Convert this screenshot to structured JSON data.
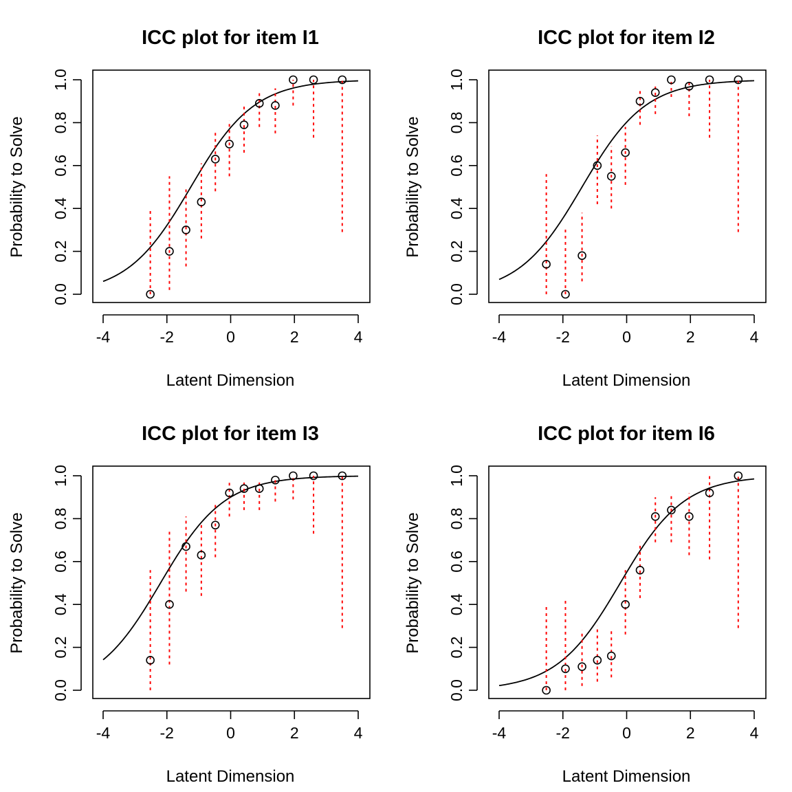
{
  "chart_data": [
    {
      "type": "scatter",
      "title": "ICC plot for item  I1",
      "xlabel": "Latent Dimension",
      "ylabel": "Probability to Solve",
      "xlim": [
        -4,
        4
      ],
      "ylim": [
        0,
        1
      ],
      "xticks": [
        -4,
        -2,
        0,
        2,
        4
      ],
      "yticks": [
        0.0,
        0.2,
        0.4,
        0.6,
        0.8,
        1.0
      ],
      "ytick_labels": [
        "0.0",
        "0.2",
        "0.4",
        "0.6",
        "0.8",
        "1.0"
      ],
      "curve": {
        "a": 1.0,
        "b": -1.25
      },
      "points": [
        {
          "x": -2.52,
          "y": 0.0,
          "lo": 0.0,
          "hi": 0.39
        },
        {
          "x": -1.92,
          "y": 0.2,
          "lo": 0.02,
          "hi": 0.55
        },
        {
          "x": -1.4,
          "y": 0.3,
          "lo": 0.13,
          "hi": 0.49
        },
        {
          "x": -0.92,
          "y": 0.43,
          "lo": 0.26,
          "hi": 0.61
        },
        {
          "x": -0.48,
          "y": 0.63,
          "lo": 0.48,
          "hi": 0.76
        },
        {
          "x": -0.04,
          "y": 0.7,
          "lo": 0.55,
          "hi": 0.81
        },
        {
          "x": 0.42,
          "y": 0.79,
          "lo": 0.66,
          "hi": 0.89
        },
        {
          "x": 0.9,
          "y": 0.89,
          "lo": 0.78,
          "hi": 0.94
        },
        {
          "x": 1.4,
          "y": 0.88,
          "lo": 0.75,
          "hi": 0.96
        },
        {
          "x": 1.96,
          "y": 1.0,
          "lo": 0.88,
          "hi": 1.0
        },
        {
          "x": 2.6,
          "y": 1.0,
          "lo": 0.73,
          "hi": 1.0
        },
        {
          "x": 3.5,
          "y": 1.0,
          "lo": 0.29,
          "hi": 1.0
        }
      ]
    },
    {
      "type": "scatter",
      "title": "ICC plot for item  I2",
      "xlabel": "Latent Dimension",
      "ylabel": "Probability to Solve",
      "xlim": [
        -4,
        4
      ],
      "ylim": [
        0,
        1
      ],
      "xticks": [
        -4,
        -2,
        0,
        2,
        4
      ],
      "yticks": [
        0.0,
        0.2,
        0.4,
        0.6,
        0.8,
        1.0
      ],
      "ytick_labels": [
        "0.0",
        "0.2",
        "0.4",
        "0.6",
        "0.8",
        "1.0"
      ],
      "curve": {
        "a": 1.0,
        "b": -1.4
      },
      "points": [
        {
          "x": -2.52,
          "y": 0.14,
          "lo": 0.0,
          "hi": 0.56
        },
        {
          "x": -1.92,
          "y": 0.0,
          "lo": 0.0,
          "hi": 0.31
        },
        {
          "x": -1.4,
          "y": 0.18,
          "lo": 0.06,
          "hi": 0.38
        },
        {
          "x": -0.92,
          "y": 0.6,
          "lo": 0.42,
          "hi": 0.74
        },
        {
          "x": -0.48,
          "y": 0.55,
          "lo": 0.4,
          "hi": 0.69
        },
        {
          "x": -0.04,
          "y": 0.66,
          "lo": 0.51,
          "hi": 0.78
        },
        {
          "x": 0.42,
          "y": 0.9,
          "lo": 0.79,
          "hi": 0.95
        },
        {
          "x": 0.9,
          "y": 0.94,
          "lo": 0.84,
          "hi": 0.98
        },
        {
          "x": 1.4,
          "y": 1.0,
          "lo": 0.92,
          "hi": 1.0
        },
        {
          "x": 1.96,
          "y": 0.97,
          "lo": 0.83,
          "hi": 1.0
        },
        {
          "x": 2.6,
          "y": 1.0,
          "lo": 0.73,
          "hi": 1.0
        },
        {
          "x": 3.5,
          "y": 1.0,
          "lo": 0.29,
          "hi": 1.0
        }
      ]
    },
    {
      "type": "scatter",
      "title": "ICC plot for item  I3",
      "xlabel": "Latent Dimension",
      "ylabel": "Probability to Solve",
      "xlim": [
        -4,
        4
      ],
      "ylim": [
        0,
        1
      ],
      "xticks": [
        -4,
        -2,
        0,
        2,
        4
      ],
      "yticks": [
        0.0,
        0.2,
        0.4,
        0.6,
        0.8,
        1.0
      ],
      "ytick_labels": [
        "0.0",
        "0.2",
        "0.4",
        "0.6",
        "0.8",
        "1.0"
      ],
      "curve": {
        "a": 1.0,
        "b": -2.2
      },
      "points": [
        {
          "x": -2.52,
          "y": 0.14,
          "lo": 0.0,
          "hi": 0.56
        },
        {
          "x": -1.92,
          "y": 0.4,
          "lo": 0.12,
          "hi": 0.74
        },
        {
          "x": -1.4,
          "y": 0.67,
          "lo": 0.46,
          "hi": 0.81
        },
        {
          "x": -0.92,
          "y": 0.63,
          "lo": 0.44,
          "hi": 0.78
        },
        {
          "x": -0.48,
          "y": 0.77,
          "lo": 0.62,
          "hi": 0.88
        },
        {
          "x": -0.04,
          "y": 0.92,
          "lo": 0.81,
          "hi": 0.97
        },
        {
          "x": 0.42,
          "y": 0.94,
          "lo": 0.84,
          "hi": 0.98
        },
        {
          "x": 0.9,
          "y": 0.94,
          "lo": 0.84,
          "hi": 0.98
        },
        {
          "x": 1.4,
          "y": 0.98,
          "lo": 0.88,
          "hi": 1.0
        },
        {
          "x": 1.96,
          "y": 1.0,
          "lo": 0.89,
          "hi": 1.0
        },
        {
          "x": 2.6,
          "y": 1.0,
          "lo": 0.73,
          "hi": 1.0
        },
        {
          "x": 3.5,
          "y": 1.0,
          "lo": 0.29,
          "hi": 1.0
        }
      ]
    },
    {
      "type": "scatter",
      "title": "ICC plot for item  I6",
      "xlabel": "Latent Dimension",
      "ylabel": "Probability to Solve",
      "xlim": [
        -4,
        4
      ],
      "ylim": [
        0,
        1
      ],
      "xticks": [
        -4,
        -2,
        0,
        2,
        4
      ],
      "yticks": [
        0.0,
        0.2,
        0.4,
        0.6,
        0.8,
        1.0
      ],
      "ytick_labels": [
        "0.0",
        "0.2",
        "0.4",
        "0.6",
        "0.8",
        "1.0"
      ],
      "curve": {
        "a": 1.0,
        "b": -0.2
      },
      "points": [
        {
          "x": -2.52,
          "y": 0.0,
          "lo": 0.0,
          "hi": 0.39
        },
        {
          "x": -1.92,
          "y": 0.1,
          "lo": 0.0,
          "hi": 0.43
        },
        {
          "x": -1.4,
          "y": 0.11,
          "lo": 0.02,
          "hi": 0.28
        },
        {
          "x": -0.92,
          "y": 0.14,
          "lo": 0.04,
          "hi": 0.3
        },
        {
          "x": -0.48,
          "y": 0.16,
          "lo": 0.06,
          "hi": 0.29
        },
        {
          "x": -0.04,
          "y": 0.4,
          "lo": 0.26,
          "hi": 0.56
        },
        {
          "x": 0.42,
          "y": 0.56,
          "lo": 0.43,
          "hi": 0.69
        },
        {
          "x": 0.9,
          "y": 0.81,
          "lo": 0.69,
          "hi": 0.9
        },
        {
          "x": 1.4,
          "y": 0.84,
          "lo": 0.69,
          "hi": 0.91
        },
        {
          "x": 1.96,
          "y": 0.81,
          "lo": 0.63,
          "hi": 0.92
        },
        {
          "x": 2.6,
          "y": 0.92,
          "lo": 0.61,
          "hi": 1.0
        },
        {
          "x": 3.5,
          "y": 1.0,
          "lo": 0.29,
          "hi": 1.0
        }
      ]
    }
  ]
}
